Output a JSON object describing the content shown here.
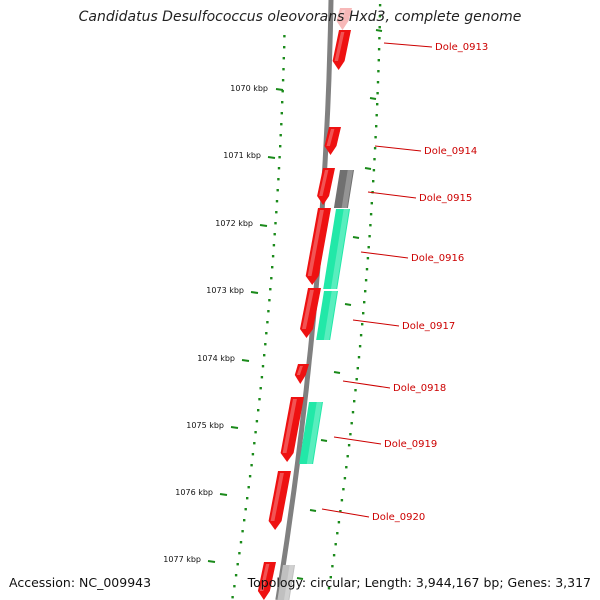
{
  "title": "Candidatus Desulfococcus oleovorans Hxd3, complete genome",
  "footer": {
    "accession": "Accession: NC_009943",
    "summary": "Topology: circular; Length: 3,944,167 bp; Genes: 3,317"
  },
  "scale_labels": [
    "1070 kbp",
    "1071 kbp",
    "1072 kbp",
    "1073 kbp",
    "1074 kbp",
    "1075 kbp",
    "1076 kbp",
    "1077 kbp"
  ],
  "gene_labels": [
    "Dole_0913",
    "Dole_0914",
    "Dole_0915",
    "Dole_0916",
    "Dole_0917",
    "Dole_0918",
    "Dole_0919",
    "Dole_0920"
  ],
  "colors": {
    "forward_gene": "#ee1111",
    "forward_gene_faded": "#f7b8b8",
    "reverse_cds": "#22e8a8",
    "reverse_other": "#707070",
    "backbone": "#808080",
    "tick": "#1a8a1a",
    "label_line": "#cc0000"
  }
}
